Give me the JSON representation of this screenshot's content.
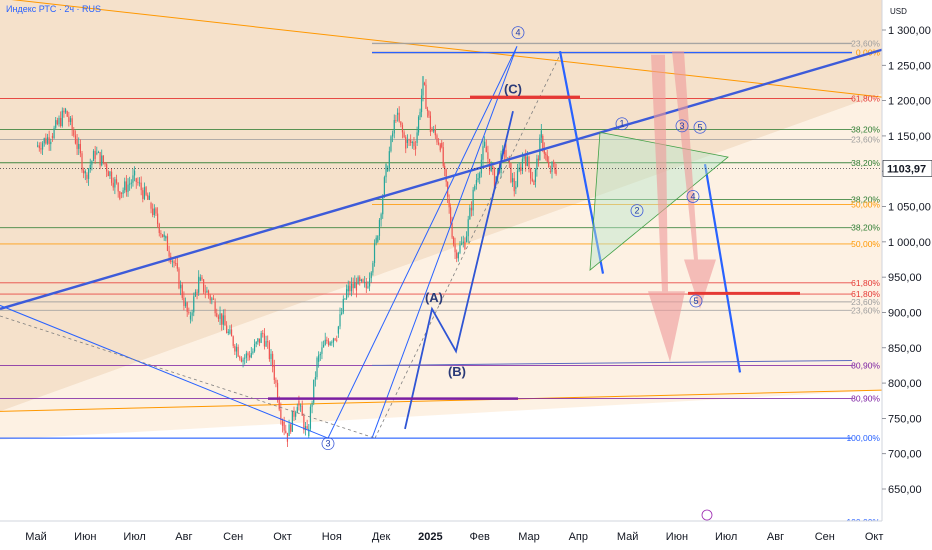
{
  "header": {
    "title": "Индекс РТС · 2ч · RUS"
  },
  "price_axis": {
    "currency": "USD",
    "current_price": "1103,97",
    "current_price_color": "#131722"
  },
  "colors": {
    "up_candle": "#26a69a",
    "down_candle": "#ef5350",
    "trendline": "#2962ff",
    "orange": "#ff9800",
    "fib_red": "#e53935",
    "fib_green": "#2e7d32",
    "fib_gray": "#9e9e9e",
    "purple": "#7b1fa2",
    "bg_tan": "#f3dcc2"
  },
  "chart_data": {
    "type": "candlestick",
    "title": "Индекс РТС · 2ч · RUS",
    "ylabel": "USD",
    "ylim": [
      585,
      1345
    ],
    "y_ticks": [
      "1 300,00",
      "1 250,00",
      "1 200,00",
      "1 150,00",
      "1 100,00",
      "1 050,00",
      "1 000,00",
      "950,00",
      "900,00",
      "850,00",
      "800,00",
      "750,00",
      "700,00",
      "650,00"
    ],
    "y_tick_values": [
      1300,
      1250,
      1200,
      1150,
      1100,
      1050,
      1000,
      950,
      900,
      850,
      800,
      750,
      700,
      650
    ],
    "x_ticks": [
      "Май",
      "Июн",
      "Июл",
      "Авг",
      "Сен",
      "Окт",
      "Ноя",
      "Дек",
      "2025",
      "Фев",
      "Мар",
      "Апр",
      "Май",
      "Июн",
      "Июл",
      "Авг",
      "Сен",
      "Окт"
    ],
    "price_path": [
      [
        0,
        1135
      ],
      [
        0.3,
        1150
      ],
      [
        0.6,
        1185
      ],
      [
        0.8,
        1145
      ],
      [
        1.0,
        1095
      ],
      [
        1.2,
        1125
      ],
      [
        1.4,
        1110
      ],
      [
        1.7,
        1070
      ],
      [
        2.0,
        1090
      ],
      [
        2.3,
        1055
      ],
      [
        2.6,
        1005
      ],
      [
        2.8,
        970
      ],
      [
        3.1,
        890
      ],
      [
        3.3,
        945
      ],
      [
        3.6,
        915
      ],
      [
        3.9,
        870
      ],
      [
        4.2,
        835
      ],
      [
        4.4,
        845
      ],
      [
        4.6,
        870
      ],
      [
        4.8,
        825
      ],
      [
        5.0,
        745
      ],
      [
        5.1,
        725
      ],
      [
        5.3,
        775
      ],
      [
        5.5,
        725
      ],
      [
        5.7,
        830
      ],
      [
        5.9,
        860
      ],
      [
        6.1,
        870
      ],
      [
        6.3,
        930
      ],
      [
        6.5,
        940
      ],
      [
        6.7,
        935
      ],
      [
        6.9,
        1000
      ],
      [
        7.1,
        1100
      ],
      [
        7.3,
        1180
      ],
      [
        7.5,
        1140
      ],
      [
        7.7,
        1140
      ],
      [
        7.85,
        1225
      ],
      [
        8.0,
        1160
      ],
      [
        8.2,
        1140
      ],
      [
        8.35,
        1060
      ],
      [
        8.5,
        985
      ],
      [
        8.7,
        1000
      ],
      [
        8.9,
        1080
      ],
      [
        9.1,
        1135
      ],
      [
        9.3,
        1085
      ],
      [
        9.5,
        1130
      ],
      [
        9.7,
        1075
      ],
      [
        9.9,
        1125
      ],
      [
        10.1,
        1085
      ],
      [
        10.25,
        1150
      ],
      [
        10.4,
        1100
      ],
      [
        10.5,
        1105
      ],
      [
        10.55,
        1104
      ]
    ],
    "fib_levels": [
      {
        "label": "23,60%",
        "value": 1281,
        "color": "gray"
      },
      {
        "label": "0,00%",
        "value": 1268,
        "color": "orange"
      },
      {
        "label": "61,80%",
        "value": 1203,
        "color": "red"
      },
      {
        "label": "38,20%",
        "value": 1159,
        "color": "green"
      },
      {
        "label": "23,60%",
        "value": 1145,
        "color": "gray"
      },
      {
        "label": "38,20%",
        "value": 1112,
        "color": "green"
      },
      {
        "label": "38,20%",
        "value": 1060,
        "color": "green"
      },
      {
        "label": "50,00%",
        "value": 1053,
        "color": "orange"
      },
      {
        "label": "38,20%",
        "value": 1020,
        "color": "green"
      },
      {
        "label": "50,00%",
        "value": 997,
        "color": "orange"
      },
      {
        "label": "61,80%",
        "value": 942,
        "color": "red"
      },
      {
        "label": "61,80%",
        "value": 926,
        "color": "red"
      },
      {
        "label": "23,60%",
        "value": 915,
        "color": "gray"
      },
      {
        "label": "23,60%",
        "value": 903,
        "color": "gray"
      },
      {
        "label": "80,90%",
        "value": 825,
        "color": "purple"
      },
      {
        "label": "80,90%",
        "value": 778,
        "color": "purple"
      },
      {
        "label": "100,00%",
        "value": 722,
        "color": "blue"
      },
      {
        "label": "100,00%",
        "value": 603,
        "color": "blue"
      }
    ],
    "wave_labels": [
      "4",
      "3",
      "(A)",
      "(B)",
      "(C)",
      "1",
      "2",
      "3",
      "4",
      "5",
      "5"
    ]
  }
}
